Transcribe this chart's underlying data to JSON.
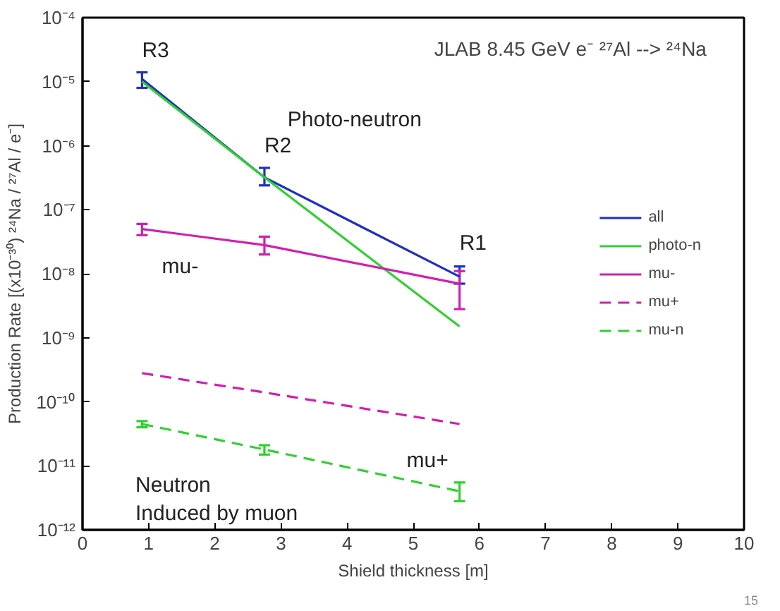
{
  "chart_data": {
    "type": "line",
    "title": "JLAB 8.45 GeV e⁻   ²⁷Al --> ²⁴Na",
    "xlabel": "Shield thickness [m]",
    "ylabel": "Production Rate [(x10⁻³⁰) ²⁴Na / ²⁷Al / e⁻]",
    "log": "y",
    "xlim": [
      0,
      10
    ],
    "xticks": [
      0,
      1,
      2,
      3,
      4,
      5,
      6,
      7,
      8,
      9,
      10
    ],
    "ylim": [
      1e-12,
      0.0001
    ],
    "yticks": [
      {
        "value": 1e-12,
        "label": "10⁻¹²"
      },
      {
        "value": 1e-11,
        "label": "10⁻¹¹"
      },
      {
        "value": 1e-10,
        "label": "10⁻¹⁰"
      },
      {
        "value": 1e-09,
        "label": "10⁻⁹"
      },
      {
        "value": 1e-08,
        "label": "10⁻⁸"
      },
      {
        "value": 1e-07,
        "label": "10⁻⁷"
      },
      {
        "value": 1e-06,
        "label": "10⁻⁶"
      },
      {
        "value": 1e-05,
        "label": "10⁻⁵"
      },
      {
        "value": 0.0001,
        "label": "10⁻⁴"
      }
    ],
    "grid": false,
    "legend": "right",
    "marker": "none",
    "series": [
      {
        "name": "all",
        "color": "#2030c0",
        "x": [
          0.9,
          2.75,
          5.7
        ],
        "values": [
          1.1e-05,
          3.2e-07,
          9e-09
        ],
        "errors": [
          [
            8e-06,
            1.4e-05
          ],
          [
            2.4e-07,
            4.5e-07
          ],
          [
            7e-09,
            1.3e-08
          ]
        ]
      },
      {
        "name": "photo-n",
        "color": "#30d030",
        "x": [
          0.9,
          2.75,
          5.7
        ],
        "values": [
          1e-05,
          3.2e-07,
          1.5e-09
        ],
        "errors": [
          null,
          null,
          null
        ]
      },
      {
        "name": "mu-",
        "color": "#d020b0",
        "x": [
          0.9,
          2.75,
          5.7
        ],
        "values": [
          5e-08,
          2.8e-08,
          7e-09
        ],
        "errors": [
          [
            4e-08,
            6e-08
          ],
          [
            2e-08,
            3.8e-08
          ],
          [
            2.8e-09,
            1.1e-08
          ]
        ]
      },
      {
        "name": "mu+",
        "color": "#d020b0",
        "line_style": "dashed",
        "x": [
          0.9,
          2.75,
          5.7
        ],
        "values": [
          2.8e-10,
          1.4e-10,
          4.5e-11
        ],
        "errors": [
          null,
          null,
          null
        ]
      },
      {
        "name": "mu-n",
        "color": "#30d030",
        "line_style": "dashed",
        "x": [
          0.9,
          2.75,
          5.7
        ],
        "values": [
          4.5e-11,
          1.8e-11,
          4e-12
        ],
        "errors": [
          [
            4e-11,
            5e-11
          ],
          [
            1.5e-11,
            2.1e-11
          ],
          [
            2.8e-12,
            5.5e-12
          ]
        ]
      }
    ],
    "annotations": [
      "R3",
      "R2",
      "R1",
      "Photo-neutron",
      "mu-",
      "mu+",
      "Neutron",
      "Induced by muon",
      "15"
    ]
  }
}
